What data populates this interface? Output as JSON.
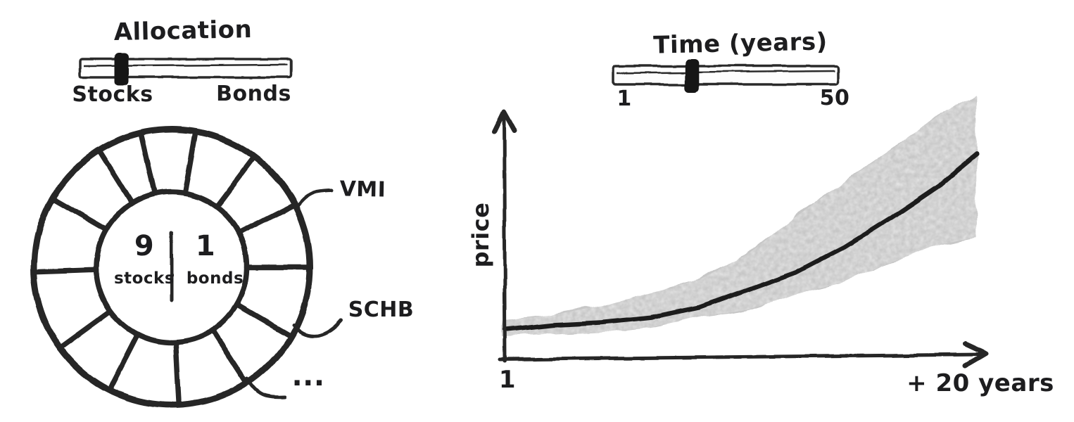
{
  "canvas": {
    "background_color": "#ffffff",
    "ink_color": "#262626",
    "band_color": "#c7c7c7",
    "thumb_color": "#161616"
  },
  "allocation_panel": {
    "title": "Allocation",
    "slider": {
      "left_label": "Stocks",
      "right_label": "Bonds",
      "thumb_position_pct": 20
    },
    "donut": {
      "ring_segments": 13,
      "center": {
        "left_value": "9",
        "left_label": "stocks",
        "right_value": "1",
        "right_label": "bonds"
      },
      "callouts": [
        "VMI",
        "SCHB",
        "..."
      ]
    }
  },
  "time_panel": {
    "title": "Time (years)",
    "slider": {
      "min_label": "1",
      "max_label": "50",
      "thumb_position_pct": 35
    }
  },
  "price_chart": {
    "ylabel": "price",
    "x_origin_label": "1",
    "x_end_label": "+ 20 years"
  },
  "chart_data": {
    "type": "line",
    "ylabel": "price",
    "xlabel": "",
    "x_axis_start_label": "1",
    "x_axis_end_annotation": "+ 20 years",
    "x_years_offset": [
      0,
      2,
      4,
      6,
      8,
      10,
      12,
      14,
      16,
      18,
      19.5
    ],
    "series": [
      {
        "name": "median_price",
        "values": [
          12,
          14,
          15,
          17,
          21,
          28,
          35,
          45,
          57,
          70,
          82
        ]
      },
      {
        "name": "upper_band",
        "values": [
          16,
          18,
          22,
          27,
          32,
          42,
          57,
          71,
          84,
          98,
          106
        ]
      },
      {
        "name": "lower_band",
        "values": [
          9,
          10,
          11,
          13,
          17,
          20,
          26,
          31,
          39,
          46,
          49
        ]
      }
    ],
    "band_between": [
      "lower_band",
      "upper_band"
    ],
    "ylim": [
      0,
      110
    ],
    "grid": false,
    "legend": false
  }
}
